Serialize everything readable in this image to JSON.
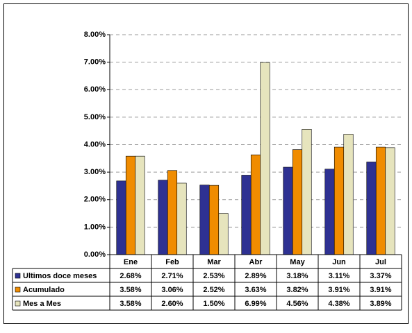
{
  "chart_data": {
    "type": "bar",
    "categories": [
      "Ene",
      "Feb",
      "Mar",
      "Abr",
      "May",
      "Jun",
      "Jul"
    ],
    "series": [
      {
        "name": "Ultimos doce meses",
        "color": "#2e3192",
        "values": [
          2.68,
          2.71,
          2.53,
          2.89,
          3.18,
          3.11,
          3.37
        ],
        "value_labels": [
          "2.68%",
          "2.71%",
          "2.53%",
          "2.89%",
          "3.18%",
          "3.11%",
          "3.37%"
        ]
      },
      {
        "name": "Acumulado",
        "color": "#f08c00",
        "values": [
          3.58,
          3.06,
          2.52,
          3.63,
          3.82,
          3.91,
          3.91
        ],
        "value_labels": [
          "3.58%",
          "3.06%",
          "2.52%",
          "3.63%",
          "3.82%",
          "3.91%",
          "3.91%"
        ]
      },
      {
        "name": "Mes a Mes",
        "color": "#e6e4bd",
        "values": [
          3.58,
          2.6,
          1.5,
          6.99,
          4.56,
          4.38,
          3.89
        ],
        "value_labels": [
          "3.58%",
          "2.60%",
          "1.50%",
          "6.99%",
          "4.56%",
          "4.38%",
          "3.89%"
        ]
      }
    ],
    "ylim": [
      0,
      8
    ],
    "yticks": [
      {
        "value": 0,
        "label": "0.00%"
      },
      {
        "value": 1,
        "label": "1.00%"
      },
      {
        "value": 2,
        "label": "2.00%"
      },
      {
        "value": 3,
        "label": "3.00%"
      },
      {
        "value": 4,
        "label": "4.00%"
      },
      {
        "value": 5,
        "label": "5.00%"
      },
      {
        "value": 6,
        "label": "6.00%"
      },
      {
        "value": 7,
        "label": "7.00%"
      },
      {
        "value": 8,
        "label": "8.00%"
      }
    ],
    "grid": true
  }
}
